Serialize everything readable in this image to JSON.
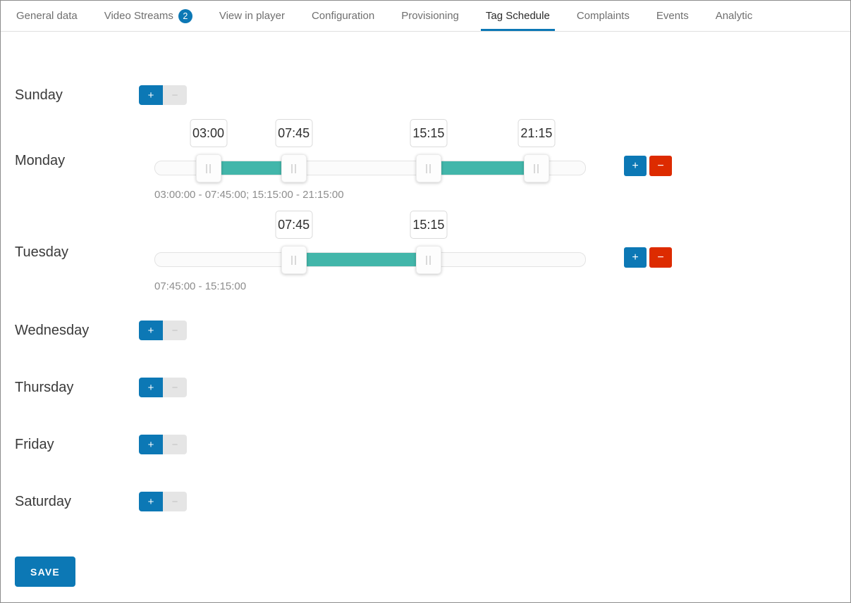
{
  "tabs": {
    "items": [
      {
        "label": "General data",
        "active": false
      },
      {
        "label": "Video Streams",
        "badge": "2",
        "active": false
      },
      {
        "label": "View in player",
        "active": false
      },
      {
        "label": "Configuration",
        "active": false
      },
      {
        "label": "Provisioning",
        "active": false
      },
      {
        "label": "Tag Schedule",
        "active": true
      },
      {
        "label": "Complaints",
        "active": false
      },
      {
        "label": "Events",
        "active": false
      },
      {
        "label": "Analytic",
        "active": false
      }
    ]
  },
  "colors": {
    "accent_blue": "#0c78b5",
    "remove_red": "#dd2b00",
    "range_teal": "#42b6aa"
  },
  "controls": {
    "add_label": "+",
    "remove_label": "−"
  },
  "days": [
    {
      "label": "Sunday"
    },
    {
      "label": "Monday",
      "ranges": [
        {
          "start": "03:00",
          "end": "07:45"
        },
        {
          "start": "15:15",
          "end": "21:15"
        }
      ],
      "summary": "03:00:00 - 07:45:00; 15:15:00 - 21:15:00"
    },
    {
      "label": "Tuesday",
      "ranges": [
        {
          "start": "07:45",
          "end": "15:15"
        }
      ],
      "summary": "07:45:00 - 15:15:00"
    },
    {
      "label": "Wednesday"
    },
    {
      "label": "Thursday"
    },
    {
      "label": "Friday"
    },
    {
      "label": "Saturday"
    }
  ],
  "save_button": "SAVE"
}
